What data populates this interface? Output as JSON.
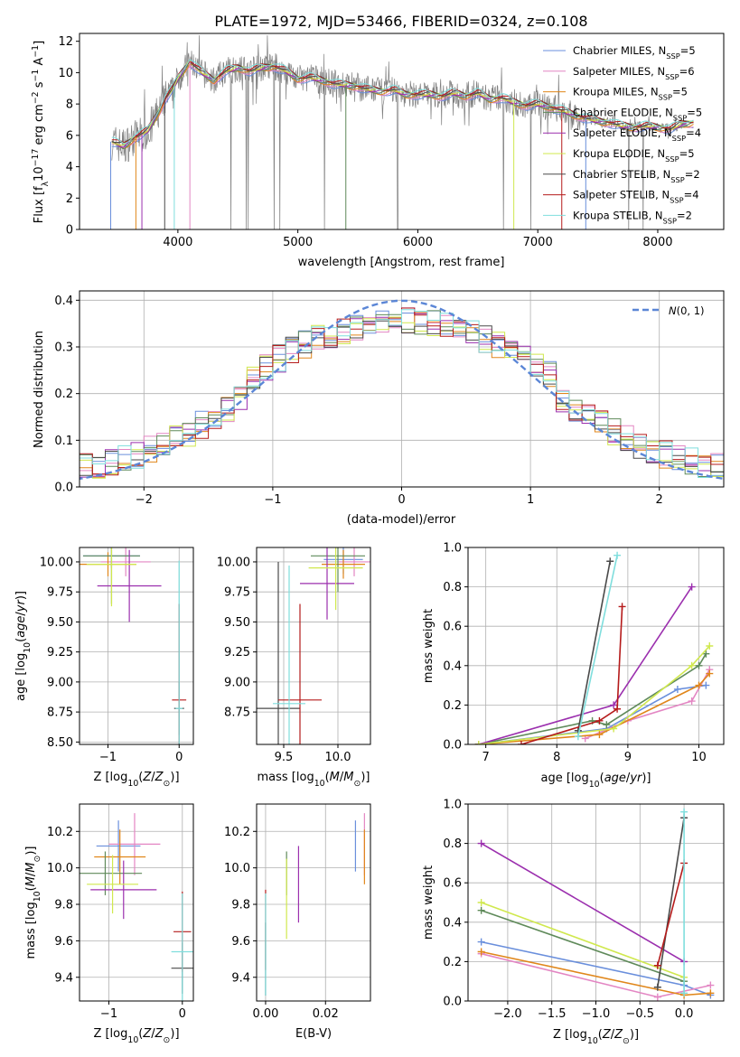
{
  "colors": {
    "series": [
      "#6a8fdc",
      "#e386c3",
      "#e0861a",
      "#5f8a5a",
      "#9b2fae",
      "#d0e84e",
      "#4a4a4a",
      "#b51b1b",
      "#7fdedd"
    ],
    "gauss": "#5b86d6",
    "spectrum_gray": "#808080",
    "grid": "#b0b0b0"
  },
  "chart_data": [
    {
      "id": "spectrum",
      "type": "line",
      "title": "PLATE=1972, MJD=53466, FIBERID=0324, z=0.108",
      "xlabel": "wavelength [Angstrom, rest frame]",
      "ylabel": "Flux [f_λ10^-17 erg cm^-2 s^-1 A^-1]",
      "xlim": [
        3180,
        8550
      ],
      "ylim": [
        0,
        12.5
      ],
      "xticks": [
        4000,
        5000,
        6000,
        7000,
        8000
      ],
      "yticks": [
        0,
        2,
        4,
        6,
        8,
        10,
        12
      ],
      "legend_position": "top-right",
      "legend": [
        {
          "base": "Chabrier MILES, N",
          "sub": "SSP",
          "tail": "=5"
        },
        {
          "base": "Salpeter MILES, N",
          "sub": "SSP",
          "tail": "=6"
        },
        {
          "base": "Kroupa MILES, N",
          "sub": "SSP",
          "tail": "=5"
        },
        {
          "base": "Chabrier ELODIE, N",
          "sub": "SSP",
          "tail": "=5"
        },
        {
          "base": "Salpeter ELODIE, N",
          "sub": "SSP",
          "tail": "=4"
        },
        {
          "base": "Kroupa ELODIE, N",
          "sub": "SSP",
          "tail": "=5"
        },
        {
          "base": "Chabrier STELIB, N",
          "sub": "SSP",
          "tail": "=2"
        },
        {
          "base": "Salpeter STELIB, N",
          "sub": "SSP",
          "tail": "=4"
        },
        {
          "base": "Kroupa STELIB, N",
          "sub": "SSP",
          "tail": "=2"
        }
      ],
      "model_x": [
        3450,
        3550,
        3650,
        3750,
        3850,
        3900,
        3950,
        4000,
        4100,
        4200,
        4300,
        4400,
        4500,
        4600,
        4700,
        4800,
        4900,
        5000,
        5100,
        5200,
        5300,
        5400,
        5500,
        5600,
        5700,
        5800,
        5900,
        6000,
        6100,
        6200,
        6300,
        6400,
        6500,
        6600,
        6700,
        6800,
        6900,
        7000,
        7100,
        7200,
        7300,
        7400,
        7500,
        7600,
        7700,
        7800,
        7900,
        8000,
        8100,
        8200,
        8300
      ],
      "model_y": [
        5.6,
        5.3,
        5.9,
        6.3,
        7.6,
        8.4,
        8.9,
        9.6,
        10.7,
        10.0,
        9.5,
        10.1,
        10.3,
        10.1,
        10.3,
        10.4,
        10.1,
        9.6,
        9.7,
        9.5,
        9.3,
        9.2,
        9.1,
        8.9,
        8.8,
        8.9,
        8.6,
        8.6,
        8.6,
        8.5,
        8.7,
        8.5,
        8.7,
        8.3,
        8.4,
        8.1,
        7.9,
        8.0,
        7.8,
        7.6,
        7.3,
        7.1,
        6.9,
        6.8,
        6.6,
        6.5,
        6.6,
        6.5,
        6.4,
        6.7,
        6.8
      ],
      "gaps_x": [
        3440,
        3650,
        3700,
        3890,
        3970,
        4100,
        5400,
        6800,
        7200,
        7400
      ],
      "obs_range": [
        3450,
        7350
      ]
    },
    {
      "id": "residuals",
      "type": "line",
      "xlabel": "(data-model)/error",
      "ylabel": "Normed distribution",
      "xlim": [
        -2.5,
        2.5
      ],
      "ylim": [
        0,
        0.42
      ],
      "xticks": [
        -2,
        -1,
        0,
        1,
        2
      ],
      "yticks": [
        0.0,
        0.1,
        0.2,
        0.3,
        0.4
      ],
      "gauss_label": "N(0,1)",
      "bin_width": 0.1,
      "legend_position": "top-right"
    },
    {
      "id": "age_vs_Z",
      "type": "scatter",
      "xlabel": "Z [log10(Z/Z⊙)]",
      "ylabel": "age [log10(age/yr)]",
      "xlim": [
        -1.4,
        0.2
      ],
      "ylim": [
        8.48,
        10.12
      ],
      "xticks": [
        -1,
        0
      ],
      "yticks": [
        8.5,
        8.75,
        9.0,
        9.25,
        9.5,
        9.75,
        10.0
      ],
      "points": [
        {
          "series": 0,
          "x": -0.95,
          "xerr": 0.4,
          "y": 10.05,
          "yerr": 0.1
        },
        {
          "series": 1,
          "x": -0.75,
          "xerr": 0.35,
          "y": 10.0,
          "yerr": 0.12
        },
        {
          "series": 2,
          "x": -1.0,
          "xerr": 0.4,
          "y": 9.98,
          "yerr": 0.1
        },
        {
          "series": 3,
          "x": -0.95,
          "xerr": 0.4,
          "y": 10.05,
          "yerr": 0.4
        },
        {
          "series": 4,
          "x": -0.7,
          "xerr": 0.45,
          "y": 9.8,
          "yerr": 0.3
        },
        {
          "series": 5,
          "x": -0.95,
          "xerr": 0.35,
          "y": 9.98,
          "yerr": 0.35
        },
        {
          "series": 6,
          "x": 0.0,
          "xerr": 0.07,
          "y": 8.78,
          "yerr": 0.22
        },
        {
          "series": 7,
          "x": 0.0,
          "xerr": 0.1,
          "y": 8.85,
          "yerr": 0.8
        },
        {
          "series": 8,
          "x": 0.0,
          "xerr": 0.05,
          "y": 8.78,
          "yerr": 1.23
        }
      ]
    },
    {
      "id": "age_vs_mass",
      "type": "scatter",
      "xlabel": "mass [log10(M/M⊙)]",
      "ylabel": "",
      "xlim": [
        9.25,
        10.3
      ],
      "ylim": [
        8.48,
        10.12
      ],
      "xticks": [
        9.5,
        10.0
      ],
      "yticks": [
        8.75,
        9.0,
        9.25,
        9.5,
        9.75,
        10.0
      ],
      "points": [
        {
          "series": 0,
          "x": 10.05,
          "xerr": 0.18,
          "y": 10.02,
          "yerr": 0.12
        },
        {
          "series": 1,
          "x": 10.15,
          "xerr": 0.15,
          "y": 10.0,
          "yerr": 0.12
        },
        {
          "series": 2,
          "x": 10.05,
          "xerr": 0.2,
          "y": 9.98,
          "yerr": 0.12
        },
        {
          "series": 3,
          "x": 10.0,
          "xerr": 0.25,
          "y": 10.05,
          "yerr": 0.3
        },
        {
          "series": 4,
          "x": 9.9,
          "xerr": 0.25,
          "y": 9.82,
          "yerr": 0.3
        },
        {
          "series": 5,
          "x": 9.98,
          "xerr": 0.25,
          "y": 9.95,
          "yerr": 0.35
        },
        {
          "series": 6,
          "x": 9.45,
          "xerr": 0.2,
          "y": 8.78,
          "yerr": 1.22
        },
        {
          "series": 7,
          "x": 9.65,
          "xerr": 0.2,
          "y": 8.85,
          "yerr": 0.8
        },
        {
          "series": 8,
          "x": 9.55,
          "xerr": 0.15,
          "y": 8.82,
          "yerr": 1.15
        }
      ]
    },
    {
      "id": "mw_vs_age",
      "type": "line",
      "xlabel": "age [log10(age/yr)]",
      "ylabel": "mass weight",
      "xlim": [
        6.75,
        10.35
      ],
      "ylim": [
        0,
        1.0
      ],
      "xticks": [
        7,
        8,
        9,
        10
      ],
      "yticks": [
        0.0,
        0.2,
        0.4,
        0.6,
        0.8,
        1.0
      ],
      "series": [
        {
          "index": 0,
          "x": [
            6.9,
            8.7,
            9.7,
            10.1
          ],
          "y": [
            0.0,
            0.08,
            0.28,
            0.3
          ]
        },
        {
          "index": 1,
          "x": [
            8.4,
            9.0,
            9.9,
            10.15
          ],
          "y": [
            0.03,
            0.12,
            0.22,
            0.38
          ]
        },
        {
          "index": 2,
          "x": [
            6.9,
            8.6,
            10.0,
            10.15
          ],
          "y": [
            0.0,
            0.05,
            0.3,
            0.36
          ]
        },
        {
          "index": 3,
          "x": [
            6.9,
            8.5,
            8.7,
            10.0,
            10.1
          ],
          "y": [
            0.0,
            0.12,
            0.1,
            0.4,
            0.46
          ]
        },
        {
          "index": 4,
          "x": [
            6.9,
            8.8,
            9.9
          ],
          "y": [
            0.0,
            0.2,
            0.8
          ]
        },
        {
          "index": 5,
          "x": [
            6.9,
            8.8,
            9.9,
            10.15
          ],
          "y": [
            0.0,
            0.08,
            0.4,
            0.5
          ]
        },
        {
          "index": 6,
          "x": [
            8.3,
            8.75
          ],
          "y": [
            0.07,
            0.93
          ]
        },
        {
          "index": 7,
          "x": [
            7.5,
            8.6,
            8.85,
            8.92
          ],
          "y": [
            0.0,
            0.12,
            0.18,
            0.7
          ]
        },
        {
          "index": 8,
          "x": [
            8.3,
            8.85
          ],
          "y": [
            0.04,
            0.96
          ]
        }
      ]
    },
    {
      "id": "mass_vs_Z",
      "type": "scatter",
      "xlabel": "Z [log10(Z/Z⊙)]",
      "ylabel": "mass [log10(M/M⊙)]",
      "xlim": [
        -1.4,
        0.15
      ],
      "ylim": [
        9.27,
        10.35
      ],
      "xticks": [
        -1,
        0
      ],
      "yticks": [
        9.4,
        9.6,
        9.8,
        10.0,
        10.2
      ],
      "points": [
        {
          "series": 0,
          "x": -0.87,
          "xerr": 0.3,
          "y": 10.12,
          "yerr": 0.14
        },
        {
          "series": 1,
          "x": -0.65,
          "xerr": 0.35,
          "y": 10.13,
          "yerr": 0.17
        },
        {
          "series": 2,
          "x": -0.85,
          "xerr": 0.35,
          "y": 10.06,
          "yerr": 0.15
        },
        {
          "series": 3,
          "x": -1.05,
          "xerr": 0.5,
          "y": 9.97,
          "yerr": 0.12
        },
        {
          "series": 4,
          "x": -0.8,
          "xerr": 0.45,
          "y": 9.88,
          "yerr": 0.16
        },
        {
          "series": 5,
          "x": -0.95,
          "xerr": 0.35,
          "y": 9.91,
          "yerr": 0.16
        },
        {
          "series": 6,
          "x": 0.0,
          "xerr": 0.15,
          "y": 9.45,
          "yerr": 0.14
        },
        {
          "series": 7,
          "x": 0.0,
          "xerr": 0.12,
          "y": 9.65,
          "yerr": 0.22
        },
        {
          "series": 8,
          "x": 0.0,
          "xerr": 0.15,
          "y": 9.54,
          "yerr": 0.32
        }
      ]
    },
    {
      "id": "mass_vs_EBV",
      "type": "scatter",
      "xlabel": "E(B-V)",
      "ylabel": "",
      "xlim": [
        -0.003,
        0.035
      ],
      "ylim": [
        9.27,
        10.35
      ],
      "xticks": [
        0.0,
        0.02
      ],
      "yticks": [
        9.4,
        9.6,
        9.8,
        10.0,
        10.2
      ],
      "points": [
        {
          "series": 0,
          "x": 0.03,
          "xerr": 0,
          "y": 10.12,
          "yerr": 0.14
        },
        {
          "series": 1,
          "x": 0.033,
          "xerr": 0,
          "y": 10.13,
          "yerr": 0.17
        },
        {
          "series": 2,
          "x": 0.033,
          "xerr": 0,
          "y": 10.06,
          "yerr": 0.15
        },
        {
          "series": 3,
          "x": 0.007,
          "xerr": 0,
          "y": 9.97,
          "yerr": 0.12
        },
        {
          "series": 4,
          "x": 0.011,
          "xerr": 0,
          "y": 9.91,
          "yerr": 0.21
        },
        {
          "series": 5,
          "x": 0.007,
          "xerr": 0,
          "y": 9.83,
          "yerr": 0.22
        },
        {
          "series": 6,
          "x": 0.0,
          "xerr": 0,
          "y": 9.5,
          "yerr": 0.2
        },
        {
          "series": 7,
          "x": 0.0,
          "xerr": 0,
          "y": 9.66,
          "yerr": 0.22
        },
        {
          "series": 8,
          "x": 0.0,
          "xerr": 0,
          "y": 9.58,
          "yerr": 0.28
        }
      ]
    },
    {
      "id": "mw_vs_Z",
      "type": "line",
      "xlabel": "Z [log10(Z/Z⊙)]",
      "ylabel": "mass weight",
      "xlim": [
        -2.45,
        0.45
      ],
      "ylim": [
        0,
        1.0
      ],
      "xticks": [
        -2.0,
        -1.5,
        -1.0,
        -0.5,
        0.0
      ],
      "yticks": [
        0.0,
        0.2,
        0.4,
        0.6,
        0.8,
        1.0
      ],
      "series": [
        {
          "index": 0,
          "x": [
            -2.3,
            0.0,
            0.3
          ],
          "y": [
            0.3,
            0.08,
            0.03
          ]
        },
        {
          "index": 1,
          "x": [
            -2.3,
            -0.3,
            0.3
          ],
          "y": [
            0.24,
            0.02,
            0.08
          ]
        },
        {
          "index": 2,
          "x": [
            -2.3,
            0.0,
            0.3
          ],
          "y": [
            0.25,
            0.03,
            0.04
          ]
        },
        {
          "index": 3,
          "x": [
            -2.3,
            0.0
          ],
          "y": [
            0.46,
            0.1
          ]
        },
        {
          "index": 4,
          "x": [
            -2.3,
            0.0
          ],
          "y": [
            0.8,
            0.2
          ]
        },
        {
          "index": 5,
          "x": [
            -2.3,
            0.0
          ],
          "y": [
            0.5,
            0.12
          ]
        },
        {
          "index": 6,
          "x": [
            -0.3,
            0.0
          ],
          "y": [
            0.07,
            0.93
          ]
        },
        {
          "index": 7,
          "x": [
            -0.3,
            0.0
          ],
          "y": [
            0.18,
            0.7
          ]
        },
        {
          "index": 8,
          "x": [
            0.0,
            0.0
          ],
          "y": [
            0.04,
            0.96
          ]
        }
      ]
    }
  ]
}
